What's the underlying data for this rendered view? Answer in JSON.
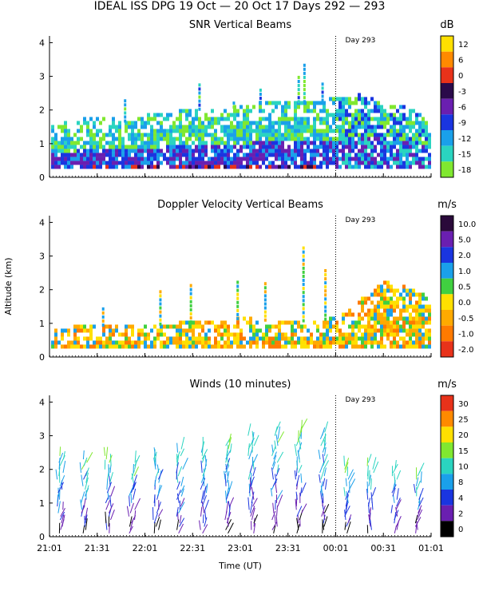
{
  "figure": {
    "title": "IDEAL ISS DPG  19 Oct — 20 Oct 17 Days 292 — 293",
    "xlabel": "Time (UT)",
    "ylabel": "Altitude (km)",
    "x_ticks": [
      "21:01",
      "21:31",
      "22:01",
      "22:31",
      "23:01",
      "23:31",
      "00:01",
      "00:31",
      "01:01"
    ],
    "y_ticks": [
      "0",
      "1",
      "2",
      "3",
      "4"
    ],
    "day_marker_label": "Day 293"
  },
  "chart_data": [
    {
      "type": "heatmap",
      "title": "SNR Vertical Beams",
      "xlabel": "",
      "ylabel": "",
      "x_range": [
        "21:01",
        "01:01"
      ],
      "ylim": [
        0,
        4.2
      ],
      "day_marker": "00:01",
      "units": "dB",
      "colorbar": {
        "labels": [
          "12",
          "6",
          "0",
          "-3",
          "-6",
          "-9",
          "-12",
          "-15",
          "-18"
        ],
        "colors": [
          "#ffe000",
          "#ff8a00",
          "#e8321a",
          "#2a0a4a",
          "#6a1fb0",
          "#1a35e0",
          "#1aa0ea",
          "#2ad4c0",
          "#80e830"
        ]
      },
      "coverage_top_km": {
        "times_h": [
          0,
          0.25,
          0.5,
          0.75,
          1,
          1.25,
          1.5,
          1.75,
          2,
          2.25,
          2.5,
          2.75,
          3,
          3.25,
          3.5,
          3.75,
          4
        ],
        "values": [
          1.5,
          1.6,
          1.8,
          1.6,
          1.8,
          1.9,
          2.0,
          1.9,
          2.1,
          2.2,
          2.2,
          2.2,
          2.3,
          2.4,
          2.2,
          2.0,
          1.6
        ]
      },
      "vertical_streaks": [
        {
          "t": 0.78,
          "top": 2.3
        },
        {
          "t": 1.56,
          "top": 2.8
        },
        {
          "t": 1.92,
          "top": 2.2
        },
        {
          "t": 2.2,
          "top": 2.6
        },
        {
          "t": 2.6,
          "top": 3.0
        },
        {
          "t": 2.66,
          "top": 3.3
        },
        {
          "t": 2.85,
          "top": 2.8
        }
      ]
    },
    {
      "type": "heatmap",
      "title": "Doppler Velocity Vertical Beams",
      "xlabel": "",
      "ylabel": "Altitude (km)",
      "x_range": [
        "21:01",
        "01:01"
      ],
      "ylim": [
        0,
        4.2
      ],
      "day_marker": "00:01",
      "units": "m/s",
      "colorbar": {
        "labels": [
          "10.0",
          "5.0",
          "2.0",
          "1.0",
          "0.5",
          "0.0",
          "-0.5",
          "-1.0",
          "-2.0"
        ],
        "colors": [
          "#2a0a3a",
          "#6a1fb0",
          "#1a35e0",
          "#1aa0ea",
          "#40d040",
          "#ffe000",
          "#ffaa00",
          "#ff7a00",
          "#e8321a"
        ]
      },
      "coverage_top_km": {
        "times_h": [
          0,
          0.5,
          1,
          1.5,
          2,
          2.5,
          3,
          3.5,
          4
        ],
        "values": [
          0.8,
          0.9,
          0.9,
          1.0,
          1.1,
          1.0,
          1.1,
          2.2,
          1.8
        ]
      },
      "vertical_streaks": [
        {
          "t": 0.55,
          "top": 1.4
        },
        {
          "t": 1.15,
          "top": 1.9
        },
        {
          "t": 1.47,
          "top": 2.1
        },
        {
          "t": 1.96,
          "top": 2.2
        },
        {
          "t": 2.25,
          "top": 2.2
        },
        {
          "t": 2.65,
          "top": 3.2
        },
        {
          "t": 2.88,
          "top": 2.6
        }
      ]
    },
    {
      "type": "scatter",
      "title": "Winds (10 minutes)",
      "xlabel": "Time (UT)",
      "ylabel": "",
      "x_range": [
        "21:01",
        "01:01"
      ],
      "ylim": [
        0,
        4.2
      ],
      "day_marker": "00:01",
      "units": "m/s",
      "interval_minutes": 10,
      "colorbar": {
        "labels": [
          "30",
          "25",
          "20",
          "15",
          "10",
          "8",
          "4",
          "2",
          "0"
        ],
        "colors": [
          "#e8321a",
          "#ff8a00",
          "#ffe000",
          "#80e830",
          "#2ad4c0",
          "#1aa0ea",
          "#1a35e0",
          "#6a1fb0",
          "#000000"
        ]
      },
      "profile_times_h": [
        0.08,
        0.33,
        0.58,
        0.83,
        1.08,
        1.33,
        1.58,
        1.83,
        2.08,
        2.33,
        2.58,
        2.83,
        3.08,
        3.33,
        3.58,
        3.83
      ],
      "profile_top_km": [
        2.5,
        2.4,
        2.5,
        2.3,
        2.5,
        2.7,
        2.8,
        2.9,
        3.1,
        3.2,
        3.3,
        3.2,
        2.2,
        2.3,
        2.1,
        2.0
      ],
      "speed_increase_with_height": "low (0-4 m/s) near surface, 8-15 m/s above 2 km"
    }
  ]
}
